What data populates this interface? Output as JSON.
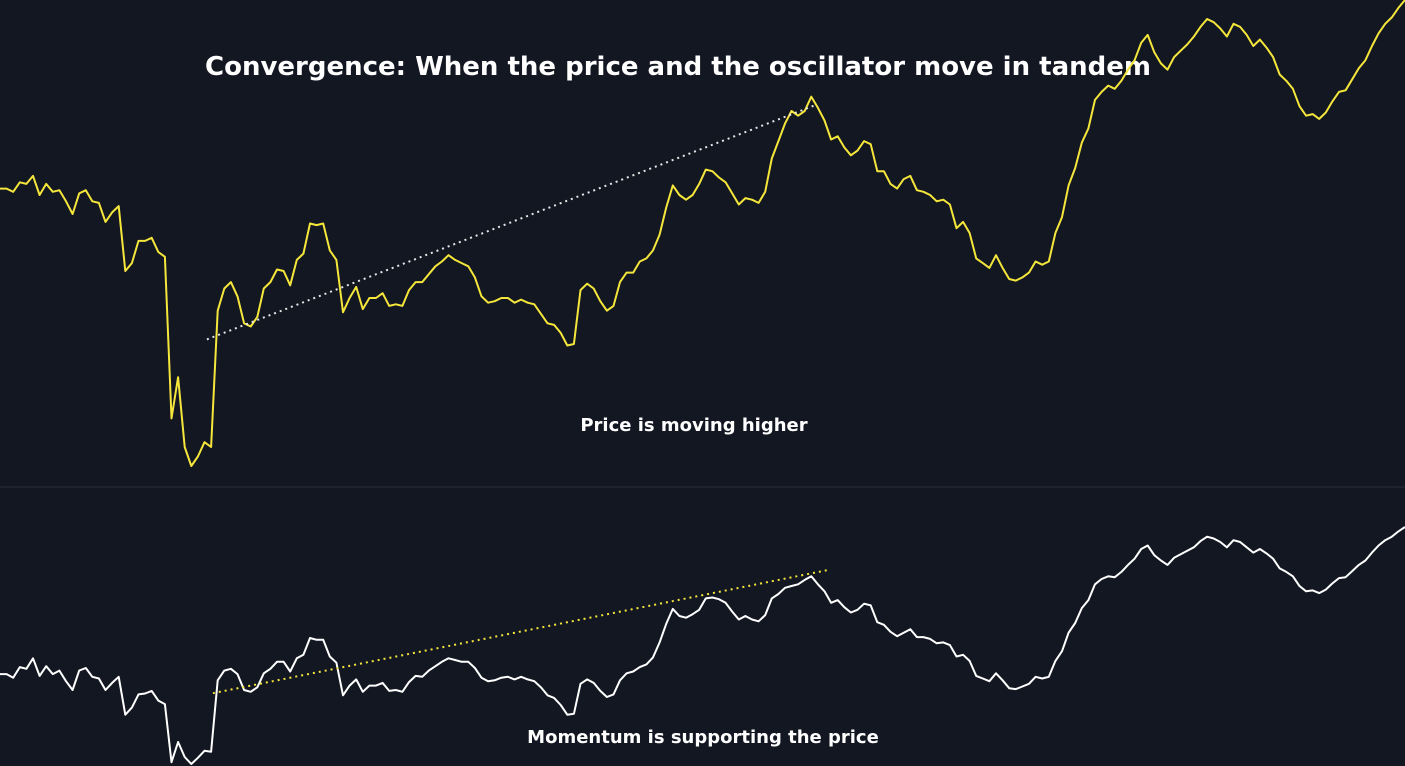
{
  "chart_data": [
    {
      "type": "line",
      "name": "price",
      "title": "Convergence: When the price and the oscillator move in tandem",
      "annotation": "Price is moving higher",
      "series": [
        {
          "name": "Price",
          "color": "#f5e63b",
          "values": [
            7.9,
            7.9,
            7.7,
            8.3,
            8.2,
            8.7,
            7.5,
            8.2,
            7.7,
            7.8,
            7.1,
            6.3,
            7.6,
            7.8,
            7.1,
            7.0,
            5.8,
            6.4,
            6.8,
            2.7,
            3.2,
            4.6,
            4.6,
            4.8,
            3.9,
            3.6,
            -6.6,
            -4.0,
            -8.4,
            -9.6,
            -9.0,
            -8.1,
            -8.4,
            0.2,
            1.6,
            2.0,
            1.1,
            -0.6,
            -0.8,
            -0.2,
            1.6,
            2.0,
            2.8,
            2.7,
            1.8,
            3.4,
            3.8,
            5.7,
            5.6,
            5.7,
            4.0,
            3.4,
            0.1,
            1.0,
            1.7,
            0.3,
            1.0,
            1.0,
            1.3,
            0.5,
            0.6,
            0.5,
            1.5,
            2.0,
            2.0,
            2.5,
            3.0,
            3.3,
            3.7,
            3.4,
            3.2,
            3.0,
            2.3,
            1.1,
            0.7,
            0.8,
            1.0,
            1.0,
            0.7,
            0.9,
            0.7,
            0.6,
            0.0,
            -0.6,
            -0.7,
            -1.2,
            -2.0,
            -1.9,
            1.5,
            1.9,
            1.6,
            0.8,
            0.2,
            0.5,
            2.0,
            2.6,
            2.6,
            3.3,
            3.5,
            4.0,
            5.0,
            6.7,
            8.1,
            7.5,
            7.2,
            7.5,
            8.2,
            9.1,
            9.0,
            8.6,
            8.3,
            7.6,
            6.9,
            7.3,
            7.2,
            7.0,
            7.7,
            9.8,
            10.9,
            12.0,
            12.8,
            12.5,
            12.8,
            13.7,
            13.0,
            12.2,
            11.0,
            11.2,
            10.5,
            10.0,
            10.3,
            10.9,
            10.7,
            9.0,
            9.0,
            8.2,
            7.9,
            8.5,
            8.7,
            7.8,
            7.7,
            7.5,
            7.1,
            7.2,
            6.9,
            5.4,
            5.8,
            5.1,
            3.5,
            3.2,
            2.9,
            3.7,
            2.9,
            2.2,
            2.1,
            2.3,
            2.6,
            3.3,
            3.1,
            3.3,
            5.1,
            6.1,
            8.1,
            9.2,
            10.8,
            11.7,
            13.5,
            14.0,
            14.4,
            14.2,
            14.7,
            15.4,
            16.0,
            17.1,
            17.6,
            16.5,
            15.8,
            15.4,
            16.2,
            16.6,
            17.0,
            17.5,
            18.1,
            18.6,
            18.4,
            18.0,
            17.5,
            18.3,
            18.1,
            17.6,
            16.9,
            17.3,
            16.8,
            16.2,
            15.1,
            14.7,
            14.2,
            13.1,
            12.5,
            12.6,
            12.3,
            12.7,
            13.4,
            14.0,
            14.1,
            14.8,
            15.5,
            16.0,
            16.9,
            17.7,
            18.3,
            18.7,
            19.3,
            19.8
          ]
        }
      ],
      "trendline": {
        "from_index": 38,
        "to_index": 121,
        "style": "dotted",
        "color": "#e6e6e6"
      },
      "xlabel": "",
      "ylabel": "",
      "grid": false
    },
    {
      "type": "line",
      "name": "momentum",
      "annotation": "Momentum is supporting the price",
      "series": [
        {
          "name": "Momentum",
          "color": "#ffffff",
          "values": [
            3.2,
            3.2,
            2.8,
            4.0,
            3.8,
            5.0,
            3.0,
            4.1,
            3.2,
            3.6,
            2.4,
            1.4,
            3.6,
            3.9,
            2.9,
            2.7,
            1.4,
            2.2,
            2.9,
            -1.4,
            -0.6,
            0.9,
            1.0,
            1.3,
            0.2,
            -0.2,
            -6.8,
            -4.5,
            -6.2,
            -7.0,
            -6.3,
            -5.5,
            -5.6,
            2.5,
            3.6,
            3.8,
            3.2,
            1.4,
            1.2,
            1.7,
            3.3,
            3.8,
            4.6,
            4.6,
            3.5,
            5.0,
            5.4,
            7.3,
            7.1,
            7.1,
            5.2,
            4.5,
            0.8,
            1.9,
            2.6,
            1.2,
            1.9,
            1.9,
            2.2,
            1.3,
            1.4,
            1.2,
            2.3,
            3.0,
            2.9,
            3.6,
            4.1,
            4.6,
            5.0,
            4.8,
            4.6,
            4.6,
            3.9,
            2.8,
            2.4,
            2.5,
            2.8,
            2.9,
            2.6,
            2.9,
            2.6,
            2.4,
            1.7,
            0.8,
            0.5,
            -0.3,
            -1.4,
            -1.3,
            2.1,
            2.6,
            2.2,
            1.3,
            0.6,
            0.9,
            2.5,
            3.3,
            3.5,
            4.0,
            4.3,
            5.1,
            6.8,
            8.9,
            10.6,
            9.8,
            9.6,
            10.0,
            10.5,
            11.8,
            11.9,
            11.7,
            11.3,
            10.3,
            9.4,
            9.8,
            9.4,
            9.2,
            9.9,
            11.8,
            12.3,
            13.0,
            13.2,
            13.4,
            13.9,
            14.3,
            13.4,
            12.6,
            11.3,
            11.6,
            10.8,
            10.2,
            10.5,
            11.2,
            11.0,
            9.1,
            8.8,
            8.0,
            7.5,
            7.9,
            8.3,
            7.4,
            7.4,
            7.2,
            6.7,
            6.8,
            6.5,
            5.2,
            5.4,
            4.7,
            3.0,
            2.7,
            2.4,
            3.3,
            2.5,
            1.6,
            1.5,
            1.8,
            2.1,
            2.9,
            2.7,
            2.9,
            4.7,
            5.8,
            7.9,
            9.0,
            10.7,
            11.6,
            13.4,
            14.0,
            14.3,
            14.2,
            14.8,
            15.6,
            16.3,
            17.4,
            17.8,
            16.7,
            16.1,
            15.6,
            16.4,
            16.8,
            17.2,
            17.6,
            18.3,
            18.8,
            18.6,
            18.2,
            17.6,
            18.4,
            18.2,
            17.6,
            17.0,
            17.4,
            16.9,
            16.3,
            15.2,
            14.8,
            14.3,
            13.2,
            12.6,
            12.7,
            12.4,
            12.8,
            13.5,
            14.1,
            14.2,
            14.9,
            15.6,
            16.1,
            17.0,
            17.8,
            18.4,
            18.8,
            19.4,
            19.9
          ]
        }
      ],
      "trendline": {
        "from_index": 39,
        "to_index": 123,
        "style": "dotted",
        "color": "#f5e63b"
      },
      "xlabel": "",
      "ylabel": "",
      "grid": false
    }
  ]
}
